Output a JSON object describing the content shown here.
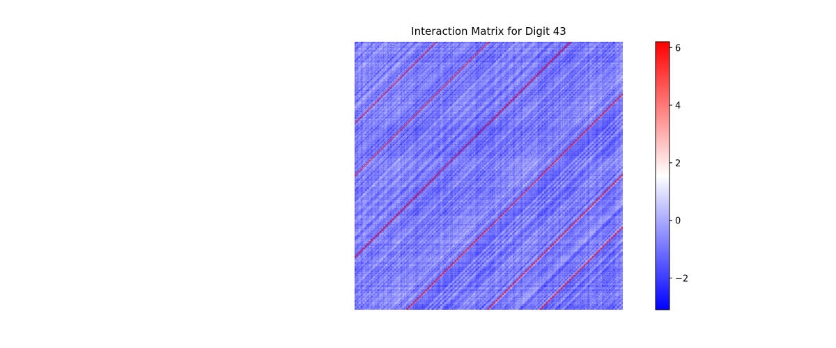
{
  "chart_data": {
    "type": "heatmap",
    "title": "Interaction Matrix for Digit 43",
    "matrix_size": 256,
    "colormap": "bwr",
    "colorbar": {
      "vmin": -3.1,
      "vmax": 6.2,
      "ticks": [
        -2,
        0,
        2,
        4,
        6
      ],
      "tick_labels": [
        "−2",
        "0",
        "2",
        "4",
        "6"
      ],
      "colors": {
        "low": "#0000ff",
        "mid": "#ffffff",
        "high": "#ff0000"
      }
    },
    "background_range": [
      -2.5,
      0.8
    ],
    "highlighted_diagonals": [
      {
        "offset": 177,
        "value": 6.0
      },
      {
        "offset": 127,
        "value": 6.0
      },
      {
        "offset": -50,
        "value": 6.0
      },
      {
        "offset": -128,
        "value": 6.0
      },
      {
        "offset": 50,
        "value": 6.0
      },
      {
        "offset": -178,
        "value": 6.0
      }
    ]
  }
}
